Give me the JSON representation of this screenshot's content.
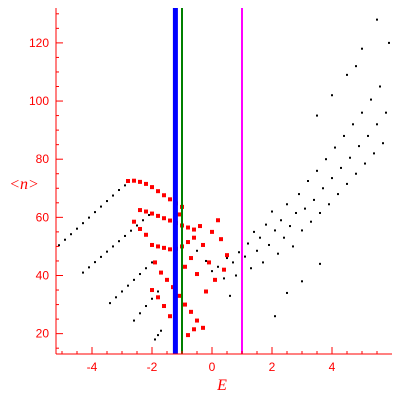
{
  "chart_data": {
    "type": "scatter",
    "title": "",
    "xlabel": "E",
    "ylabel": "<n>",
    "xlim": [
      -5.2,
      6.0
    ],
    "ylim": [
      13,
      132
    ],
    "x_ticks": [
      -4,
      -2,
      0,
      2,
      4
    ],
    "x_tick_labels": [
      "-4",
      "-2",
      "0",
      "2",
      "4"
    ],
    "y_ticks": [
      20,
      40,
      60,
      80,
      100,
      120
    ],
    "y_tick_labels": [
      "20",
      "40",
      "60",
      "80",
      "100",
      "120"
    ],
    "grid": false,
    "legend": "none",
    "colors": {
      "axis": "#ff0000",
      "black_points": "#000000",
      "red_points": "#ff0000",
      "line_blue": "#0000ff",
      "line_green": "#008000",
      "line_magenta": "#ff00ff"
    },
    "vertical_lines": [
      {
        "x": -1.22,
        "color": "#0000ff",
        "width": "thick"
      },
      {
        "x": -1.0,
        "color": "#008000",
        "width": "thin"
      },
      {
        "x": 1.0,
        "color": "#ff00ff",
        "width": "thin"
      }
    ],
    "series": [
      {
        "color": "#000000",
        "marker": "small-dot",
        "points": [
          [
            -5.1,
            50.4
          ],
          [
            -4.9,
            52.3
          ],
          [
            -4.7,
            54.2
          ],
          [
            -4.5,
            56.1
          ],
          [
            -4.3,
            58.0
          ],
          [
            -4.1,
            59.9
          ],
          [
            -3.9,
            61.8
          ],
          [
            -3.7,
            63.7
          ],
          [
            -3.5,
            65.6
          ],
          [
            -3.3,
            67.5
          ],
          [
            -3.1,
            69.4
          ],
          [
            -2.9,
            71.0
          ],
          [
            -4.3,
            41.0
          ],
          [
            -4.1,
            42.8
          ],
          [
            -3.9,
            44.6
          ],
          [
            -3.7,
            46.4
          ],
          [
            -3.5,
            48.2
          ],
          [
            -3.3,
            50.0
          ],
          [
            -3.1,
            51.8
          ],
          [
            -2.9,
            53.6
          ],
          [
            -2.7,
            55.4
          ],
          [
            -2.5,
            57.2
          ],
          [
            -2.3,
            59.0
          ],
          [
            -2.1,
            60.8
          ],
          [
            -3.4,
            30.5
          ],
          [
            -3.2,
            32.5
          ],
          [
            -3.0,
            34.5
          ],
          [
            -2.8,
            36.5
          ],
          [
            -2.6,
            38.5
          ],
          [
            -2.4,
            40.5
          ],
          [
            -2.2,
            42.5
          ],
          [
            -2.0,
            44.5
          ],
          [
            -2.6,
            24.5
          ],
          [
            -2.4,
            27.0
          ],
          [
            -2.2,
            29.5
          ],
          [
            -2.0,
            32.0
          ],
          [
            -1.8,
            34.5
          ],
          [
            -1.9,
            18.0
          ],
          [
            -1.8,
            19.5
          ],
          [
            -1.7,
            21.0
          ],
          [
            -0.5,
            48.5
          ],
          [
            -0.2,
            45.0
          ],
          [
            0.0,
            41.5
          ],
          [
            0.2,
            43.0
          ],
          [
            0.4,
            39.0
          ],
          [
            0.5,
            46.0
          ],
          [
            0.7,
            44.5
          ],
          [
            0.8,
            40.0
          ],
          [
            0.9,
            48.0
          ],
          [
            1.1,
            46.5
          ],
          [
            1.2,
            51.0
          ],
          [
            1.3,
            42.5
          ],
          [
            1.4,
            55.0
          ],
          [
            1.5,
            48.5
          ],
          [
            1.6,
            53.0
          ],
          [
            1.7,
            44.5
          ],
          [
            1.8,
            57.5
          ],
          [
            1.9,
            50.5
          ],
          [
            2.0,
            62.0
          ],
          [
            2.1,
            55.5
          ],
          [
            2.2,
            47.5
          ],
          [
            2.3,
            59.0
          ],
          [
            2.4,
            53.0
          ],
          [
            2.5,
            64.5
          ],
          [
            2.6,
            57.0
          ],
          [
            2.7,
            50.0
          ],
          [
            2.8,
            61.5
          ],
          [
            2.9,
            68.0
          ],
          [
            3.0,
            55.5
          ],
          [
            3.1,
            63.0
          ],
          [
            3.2,
            72.5
          ],
          [
            3.3,
            58.5
          ],
          [
            3.4,
            66.0
          ],
          [
            3.5,
            76.0
          ],
          [
            3.6,
            61.5
          ],
          [
            3.7,
            70.0
          ],
          [
            3.8,
            80.0
          ],
          [
            3.9,
            64.5
          ],
          [
            4.0,
            73.5
          ],
          [
            4.1,
            84.0
          ],
          [
            4.2,
            68.0
          ],
          [
            4.3,
            77.0
          ],
          [
            4.4,
            88.0
          ],
          [
            4.5,
            71.5
          ],
          [
            4.6,
            80.5
          ],
          [
            4.7,
            92.0
          ],
          [
            4.8,
            75.0
          ],
          [
            4.9,
            84.5
          ],
          [
            5.0,
            96.0
          ],
          [
            5.1,
            78.5
          ],
          [
            5.2,
            88.0
          ],
          [
            5.3,
            100.5
          ],
          [
            5.4,
            82.0
          ],
          [
            5.5,
            92.0
          ],
          [
            5.6,
            105.0
          ],
          [
            5.7,
            85.5
          ],
          [
            5.8,
            96.0
          ],
          [
            4.5,
            109.0
          ],
          [
            5.0,
            118.0
          ],
          [
            5.5,
            128.0
          ],
          [
            3.5,
            95.0
          ],
          [
            4.0,
            102.0
          ],
          [
            4.8,
            112.0
          ],
          [
            5.9,
            120.0
          ],
          [
            2.1,
            26.0
          ],
          [
            1.0,
            35.0
          ],
          [
            0.6,
            33.0
          ],
          [
            2.5,
            34.0
          ],
          [
            3.0,
            38.0
          ],
          [
            3.6,
            44.0
          ]
        ]
      },
      {
        "color": "#ff0000",
        "marker": "small-square",
        "points": [
          [
            -2.8,
            72.5
          ],
          [
            -2.6,
            72.6
          ],
          [
            -2.4,
            72.2
          ],
          [
            -2.2,
            71.5
          ],
          [
            -2.0,
            70.4
          ],
          [
            -1.8,
            69.0
          ],
          [
            -1.6,
            67.6
          ],
          [
            -1.4,
            66.2
          ],
          [
            -1.2,
            64.8
          ],
          [
            -1.0,
            63.6
          ],
          [
            -2.4,
            62.5
          ],
          [
            -2.2,
            62.0
          ],
          [
            -2.0,
            61.3
          ],
          [
            -1.8,
            60.5
          ],
          [
            -1.6,
            59.7
          ],
          [
            -1.4,
            58.9
          ],
          [
            -1.2,
            58.0
          ],
          [
            -1.0,
            57.2
          ],
          [
            -0.8,
            56.5
          ],
          [
            -0.6,
            55.8
          ],
          [
            -2.6,
            58.5
          ],
          [
            -2.4,
            56.0
          ],
          [
            -2.0,
            50.5
          ],
          [
            -1.8,
            50.0
          ],
          [
            -1.6,
            49.5
          ],
          [
            -1.4,
            49.0
          ],
          [
            -1.2,
            49.2
          ],
          [
            -1.0,
            50.0
          ],
          [
            -0.8,
            51.5
          ],
          [
            -0.6,
            53.0
          ],
          [
            -2.2,
            54.0
          ],
          [
            -1.9,
            44.5
          ],
          [
            -1.7,
            41.0
          ],
          [
            -1.5,
            38.5
          ],
          [
            -1.3,
            36.0
          ],
          [
            -1.1,
            33.0
          ],
          [
            -0.9,
            30.0
          ],
          [
            -0.7,
            27.5
          ],
          [
            -0.5,
            24.5
          ],
          [
            -0.3,
            22.0
          ],
          [
            -2.0,
            35.0
          ],
          [
            -1.8,
            32.5
          ],
          [
            -1.6,
            29.5
          ],
          [
            -1.4,
            26.0
          ],
          [
            -0.9,
            43.0
          ],
          [
            -0.7,
            46.0
          ],
          [
            -0.5,
            40.5
          ],
          [
            -0.3,
            50.5
          ],
          [
            -0.1,
            44.5
          ],
          [
            0.1,
            38.5
          ],
          [
            0.3,
            52.5
          ],
          [
            0.5,
            47.0
          ],
          [
            -0.8,
            19.5
          ],
          [
            -0.6,
            21.5
          ],
          [
            0.0,
            55.0
          ],
          [
            0.2,
            59.0
          ],
          [
            -0.4,
            57.0
          ],
          [
            0.4,
            42.0
          ],
          [
            -1.1,
            61.0
          ],
          [
            -0.2,
            34.5
          ]
        ]
      }
    ]
  }
}
